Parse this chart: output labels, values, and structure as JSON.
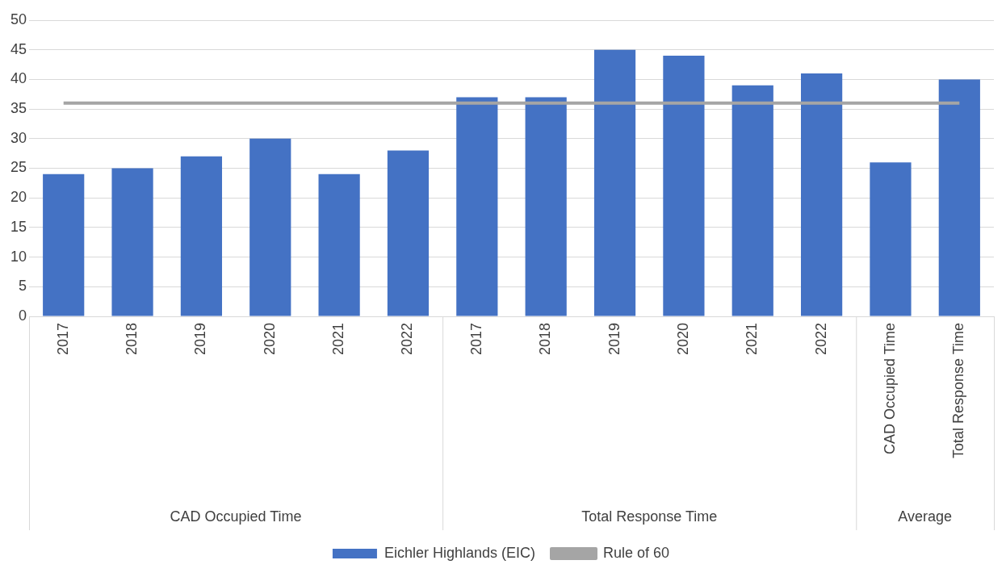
{
  "chart_data": {
    "type": "bar",
    "categories": [
      "2017",
      "2018",
      "2019",
      "2020",
      "2021",
      "2022",
      "2017",
      "2018",
      "2019",
      "2020",
      "2021",
      "2022",
      "CAD Occupied Time",
      "Total Response Time"
    ],
    "series": [
      {
        "name": "Eichler Highlands (EIC)",
        "color": "#4472c4",
        "values": [
          24,
          25,
          27,
          30,
          24,
          28,
          37,
          37,
          45,
          44,
          39,
          41,
          26,
          40
        ]
      },
      {
        "name": "Rule of 60",
        "type": "line",
        "color": "#a5a5a5",
        "values": [
          36,
          36,
          36,
          36,
          36,
          36,
          36,
          36,
          36,
          36,
          36,
          36,
          36,
          36
        ]
      }
    ],
    "annotations": [
      "CAD Occupied Time",
      "Total Response Time",
      "Average"
    ],
    "ylim": [
      0,
      50
    ],
    "yticks": [
      0,
      5,
      10,
      15,
      20,
      25,
      30,
      35,
      40,
      45,
      50
    ],
    "grid": "y",
    "legend": "bottom"
  }
}
